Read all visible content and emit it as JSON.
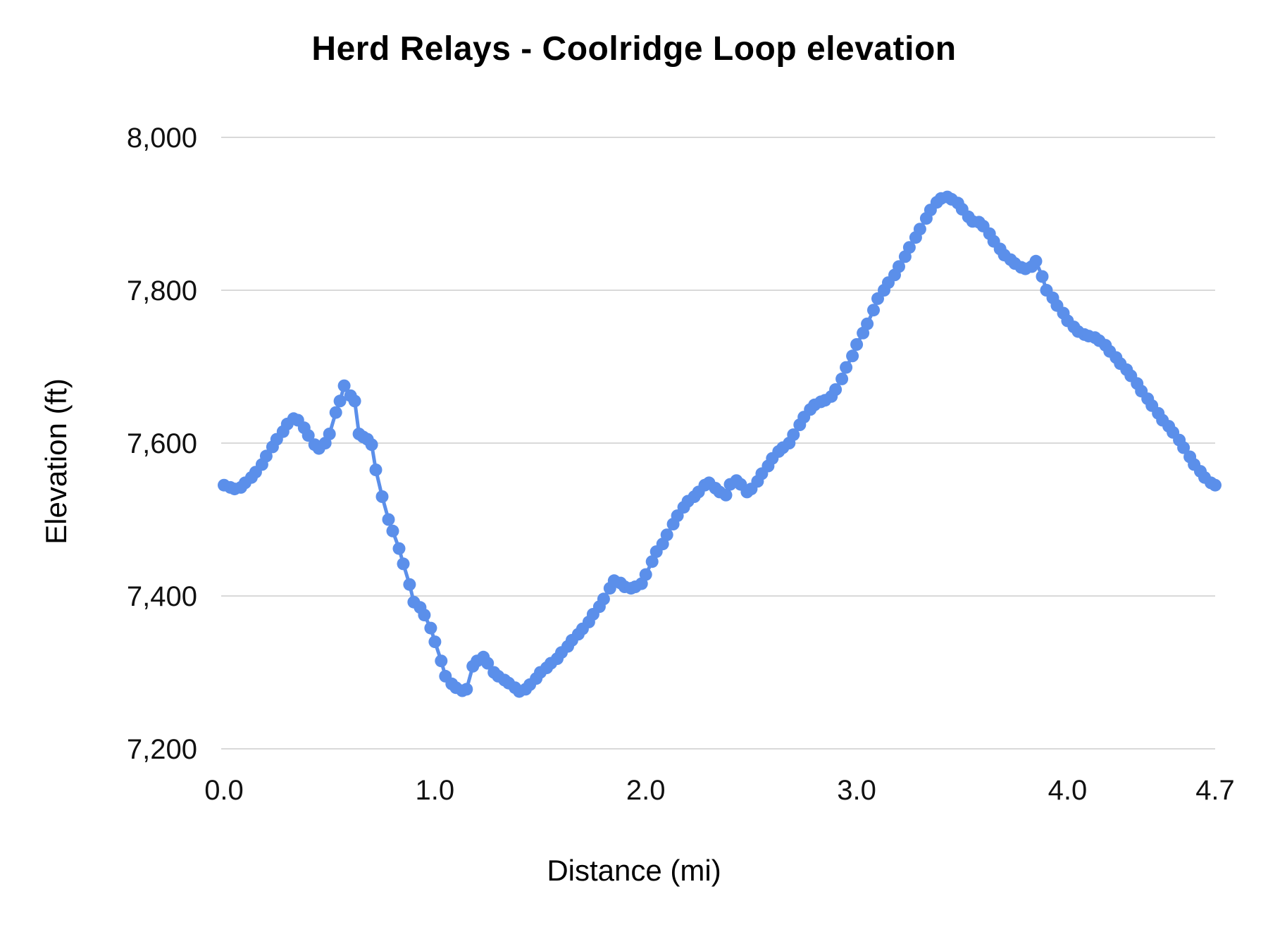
{
  "chart": {
    "title": "Herd Relays - Coolridge Loop elevation",
    "xlabel": "Distance (mi)",
    "ylabel": "Elevation (ft)"
  },
  "chart_data": {
    "type": "line",
    "title": "Herd Relays - Coolridge Loop elevation",
    "xlabel": "Distance (mi)",
    "ylabel": "Elevation (ft)",
    "xlim": [
      0,
      4.7
    ],
    "ylim": [
      7200,
      8000
    ],
    "x_ticks": [
      0.0,
      1.0,
      2.0,
      3.0,
      4.0,
      4.7
    ],
    "x_tick_labels": [
      "0.0",
      "1.0",
      "2.0",
      "3.0",
      "4.0",
      "4.7"
    ],
    "y_ticks": [
      7200,
      7400,
      7600,
      7800,
      8000
    ],
    "y_tick_labels": [
      "7,200",
      "7,400",
      "7,600",
      "7,800",
      "8,000"
    ],
    "grid": true,
    "legend": "none",
    "color": "#5B8FEA",
    "grid_color": "#D9D9D9",
    "background": "#FFFFFF",
    "series": [
      {
        "name": "elevation",
        "points": [
          [
            0.0,
            7545
          ],
          [
            0.03,
            7542
          ],
          [
            0.05,
            7540
          ],
          [
            0.08,
            7542
          ],
          [
            0.1,
            7548
          ],
          [
            0.13,
            7555
          ],
          [
            0.15,
            7562
          ],
          [
            0.18,
            7572
          ],
          [
            0.2,
            7583
          ],
          [
            0.23,
            7595
          ],
          [
            0.25,
            7605
          ],
          [
            0.28,
            7615
          ],
          [
            0.3,
            7625
          ],
          [
            0.33,
            7632
          ],
          [
            0.35,
            7630
          ],
          [
            0.38,
            7620
          ],
          [
            0.4,
            7610
          ],
          [
            0.43,
            7598
          ],
          [
            0.45,
            7593
          ],
          [
            0.48,
            7600
          ],
          [
            0.5,
            7612
          ],
          [
            0.53,
            7640
          ],
          [
            0.55,
            7655
          ],
          [
            0.57,
            7675
          ],
          [
            0.6,
            7662
          ],
          [
            0.62,
            7655
          ],
          [
            0.64,
            7612
          ],
          [
            0.66,
            7608
          ],
          [
            0.68,
            7605
          ],
          [
            0.7,
            7598
          ],
          [
            0.72,
            7565
          ],
          [
            0.75,
            7530
          ],
          [
            0.78,
            7500
          ],
          [
            0.8,
            7485
          ],
          [
            0.83,
            7462
          ],
          [
            0.85,
            7442
          ],
          [
            0.88,
            7415
          ],
          [
            0.9,
            7392
          ],
          [
            0.93,
            7385
          ],
          [
            0.95,
            7375
          ],
          [
            0.98,
            7358
          ],
          [
            1.0,
            7340
          ],
          [
            1.03,
            7315
          ],
          [
            1.05,
            7295
          ],
          [
            1.08,
            7285
          ],
          [
            1.1,
            7280
          ],
          [
            1.13,
            7276
          ],
          [
            1.15,
            7278
          ],
          [
            1.18,
            7308
          ],
          [
            1.2,
            7315
          ],
          [
            1.23,
            7320
          ],
          [
            1.25,
            7312
          ],
          [
            1.28,
            7300
          ],
          [
            1.3,
            7295
          ],
          [
            1.33,
            7290
          ],
          [
            1.35,
            7286
          ],
          [
            1.38,
            7280
          ],
          [
            1.4,
            7275
          ],
          [
            1.43,
            7278
          ],
          [
            1.45,
            7284
          ],
          [
            1.48,
            7292
          ],
          [
            1.5,
            7300
          ],
          [
            1.53,
            7306
          ],
          [
            1.55,
            7312
          ],
          [
            1.58,
            7318
          ],
          [
            1.6,
            7326
          ],
          [
            1.63,
            7334
          ],
          [
            1.65,
            7342
          ],
          [
            1.68,
            7350
          ],
          [
            1.7,
            7357
          ],
          [
            1.73,
            7366
          ],
          [
            1.75,
            7376
          ],
          [
            1.78,
            7386
          ],
          [
            1.8,
            7396
          ],
          [
            1.83,
            7410
          ],
          [
            1.85,
            7420
          ],
          [
            1.88,
            7417
          ],
          [
            1.9,
            7412
          ],
          [
            1.93,
            7410
          ],
          [
            1.95,
            7412
          ],
          [
            1.98,
            7416
          ],
          [
            2.0,
            7428
          ],
          [
            2.03,
            7445
          ],
          [
            2.05,
            7458
          ],
          [
            2.08,
            7468
          ],
          [
            2.1,
            7480
          ],
          [
            2.13,
            7494
          ],
          [
            2.15,
            7505
          ],
          [
            2.18,
            7516
          ],
          [
            2.2,
            7524
          ],
          [
            2.23,
            7530
          ],
          [
            2.25,
            7536
          ],
          [
            2.28,
            7545
          ],
          [
            2.3,
            7548
          ],
          [
            2.33,
            7541
          ],
          [
            2.35,
            7536
          ],
          [
            2.38,
            7532
          ],
          [
            2.4,
            7546
          ],
          [
            2.43,
            7551
          ],
          [
            2.45,
            7546
          ],
          [
            2.48,
            7536
          ],
          [
            2.5,
            7540
          ],
          [
            2.53,
            7550
          ],
          [
            2.55,
            7560
          ],
          [
            2.58,
            7570
          ],
          [
            2.6,
            7580
          ],
          [
            2.63,
            7589
          ],
          [
            2.65,
            7594
          ],
          [
            2.68,
            7600
          ],
          [
            2.7,
            7611
          ],
          [
            2.73,
            7624
          ],
          [
            2.75,
            7634
          ],
          [
            2.78,
            7644
          ],
          [
            2.8,
            7650
          ],
          [
            2.83,
            7654
          ],
          [
            2.85,
            7656
          ],
          [
            2.88,
            7661
          ],
          [
            2.9,
            7670
          ],
          [
            2.93,
            7684
          ],
          [
            2.95,
            7699
          ],
          [
            2.98,
            7714
          ],
          [
            3.0,
            7729
          ],
          [
            3.03,
            7744
          ],
          [
            3.05,
            7756
          ],
          [
            3.08,
            7774
          ],
          [
            3.1,
            7789
          ],
          [
            3.13,
            7800
          ],
          [
            3.15,
            7810
          ],
          [
            3.18,
            7820
          ],
          [
            3.2,
            7831
          ],
          [
            3.23,
            7844
          ],
          [
            3.25,
            7856
          ],
          [
            3.28,
            7869
          ],
          [
            3.3,
            7880
          ],
          [
            3.33,
            7894
          ],
          [
            3.35,
            7905
          ],
          [
            3.38,
            7915
          ],
          [
            3.4,
            7920
          ],
          [
            3.43,
            7922
          ],
          [
            3.45,
            7919
          ],
          [
            3.48,
            7914
          ],
          [
            3.5,
            7906
          ],
          [
            3.53,
            7896
          ],
          [
            3.55,
            7890
          ],
          [
            3.58,
            7889
          ],
          [
            3.6,
            7884
          ],
          [
            3.63,
            7874
          ],
          [
            3.65,
            7864
          ],
          [
            3.68,
            7854
          ],
          [
            3.7,
            7846
          ],
          [
            3.73,
            7840
          ],
          [
            3.75,
            7835
          ],
          [
            3.78,
            7830
          ],
          [
            3.8,
            7828
          ],
          [
            3.83,
            7831
          ],
          [
            3.85,
            7838
          ],
          [
            3.88,
            7818
          ],
          [
            3.9,
            7800
          ],
          [
            3.93,
            7790
          ],
          [
            3.95,
            7780
          ],
          [
            3.98,
            7770
          ],
          [
            4.0,
            7760
          ],
          [
            4.03,
            7752
          ],
          [
            4.05,
            7746
          ],
          [
            4.08,
            7742
          ],
          [
            4.1,
            7740
          ],
          [
            4.13,
            7738
          ],
          [
            4.15,
            7734
          ],
          [
            4.18,
            7728
          ],
          [
            4.2,
            7720
          ],
          [
            4.23,
            7712
          ],
          [
            4.25,
            7704
          ],
          [
            4.28,
            7696
          ],
          [
            4.3,
            7688
          ],
          [
            4.33,
            7678
          ],
          [
            4.35,
            7668
          ],
          [
            4.38,
            7658
          ],
          [
            4.4,
            7649
          ],
          [
            4.43,
            7639
          ],
          [
            4.45,
            7630
          ],
          [
            4.48,
            7622
          ],
          [
            4.5,
            7614
          ],
          [
            4.53,
            7604
          ],
          [
            4.55,
            7594
          ],
          [
            4.58,
            7582
          ],
          [
            4.6,
            7572
          ],
          [
            4.63,
            7563
          ],
          [
            4.65,
            7555
          ],
          [
            4.68,
            7548
          ],
          [
            4.7,
            7545
          ]
        ]
      }
    ]
  }
}
